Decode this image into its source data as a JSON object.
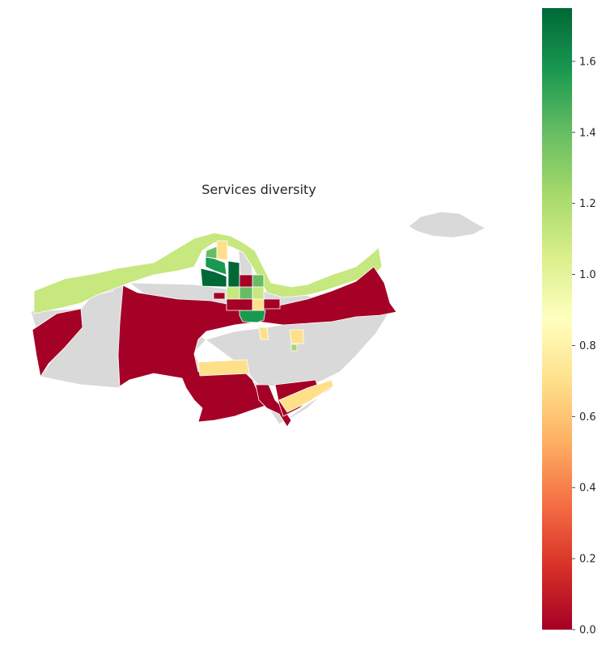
{
  "title": "Services diversity",
  "colorbar": {
    "min": 0.0,
    "max": 1.75,
    "ticks": [
      {
        "value": 0.0,
        "label": "0.0"
      },
      {
        "value": 0.2,
        "label": "0.2"
      },
      {
        "value": 0.4,
        "label": "0.4"
      },
      {
        "value": 0.6,
        "label": "0.6"
      },
      {
        "value": 0.8,
        "label": "0.8"
      },
      {
        "value": 1.0,
        "label": "1.0"
      },
      {
        "value": 1.2,
        "label": "1.2"
      },
      {
        "value": 1.4,
        "label": "1.4"
      },
      {
        "value": 1.6,
        "label": "1.6"
      }
    ],
    "colormap": [
      "#a50026",
      "#d73027",
      "#f46d43",
      "#fdae61",
      "#fee08b",
      "#ffffbf",
      "#d9ef8b",
      "#a6d96a",
      "#66bd63",
      "#1a9850",
      "#006837"
    ]
  },
  "colors": {
    "no_data": "#d9d9d9",
    "district_border": "#ffffff"
  }
}
